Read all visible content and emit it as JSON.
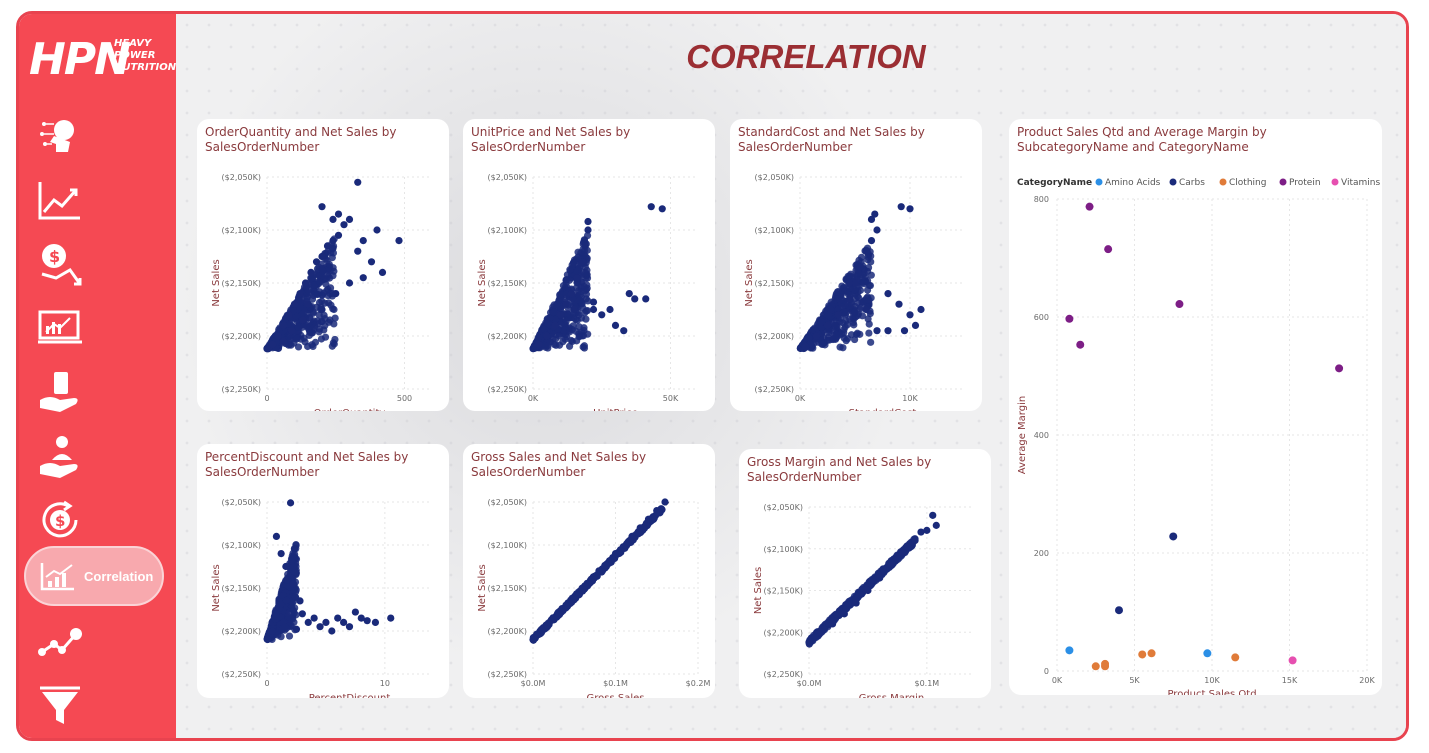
{
  "app": {
    "brand_main": "HPN",
    "brand_sub": [
      "HEAVY",
      "POWER",
      "NUTRITION"
    ],
    "page_title": "CORRELATION",
    "active_nav_label": "Correlation"
  },
  "nav_icons": [
    "ai-head-icon",
    "growth-chart-icon",
    "money-down-icon",
    "monitor-chart-icon",
    "hand-cash-icon",
    "hand-person-icon",
    "dollar-cycle-icon",
    "correlation-icon",
    "network-icon",
    "funnel-icon"
  ],
  "colors": {
    "sidebar": "#f54953",
    "accent": "#9b2e33",
    "point": "#1a2a7a",
    "amino": "#2b8fe6",
    "carbs": "#1a2a7a",
    "clothing": "#e07b39",
    "protein": "#7d1e86",
    "vitamins": "#e64fb0"
  },
  "chart_data": [
    {
      "type": "scatter",
      "title": "OrderQuantity and Net Sales by SalesOrderNumber",
      "xlabel": "OrderQuantity",
      "ylabel": "Net Sales",
      "xlim": [
        0,
        600
      ],
      "ylim": [
        -2250000,
        -2050000
      ],
      "x_ticks": [
        "0",
        "500"
      ],
      "x_tick_values": [
        0,
        500
      ],
      "y_ticks": [
        "($2,050K)",
        "($2,100K)",
        "($2,150K)",
        "($2,200K)",
        "($2,250K)"
      ],
      "y_tick_values": [
        -2050000,
        -2100000,
        -2150000,
        -2200000,
        -2250000
      ],
      "points": [
        [
          5,
          -2212000
        ],
        [
          20,
          -2208000
        ],
        [
          40,
          -2200000
        ],
        [
          60,
          -2190000
        ],
        [
          80,
          -2180000
        ],
        [
          100,
          -2170000
        ],
        [
          120,
          -2160000
        ],
        [
          140,
          -2150000
        ],
        [
          160,
          -2140000
        ],
        [
          180,
          -2130000
        ],
        [
          200,
          -2125000
        ],
        [
          220,
          -2115000
        ],
        [
          240,
          -2110000
        ],
        [
          260,
          -2105000
        ],
        [
          280,
          -2095000
        ],
        [
          300,
          -2090000
        ],
        [
          330,
          -2120000
        ],
        [
          350,
          -2110000
        ],
        [
          380,
          -2130000
        ],
        [
          400,
          -2100000
        ],
        [
          420,
          -2140000
        ],
        [
          480,
          -2110000
        ],
        [
          330,
          -2055000
        ],
        [
          200,
          -2078000
        ],
        [
          240,
          -2090000
        ],
        [
          260,
          -2085000
        ],
        [
          150,
          -2170000
        ],
        [
          90,
          -2195000
        ],
        [
          60,
          -2205000
        ],
        [
          300,
          -2150000
        ],
        [
          250,
          -2160000
        ],
        [
          200,
          -2175000
        ],
        [
          350,
          -2145000
        ],
        [
          130,
          -2185000
        ]
      ],
      "scatter_cloud": {
        "x": [
          0,
          250
        ],
        "y": [
          -2212000,
          -2105000
        ]
      }
    },
    {
      "type": "scatter",
      "title": "UnitPrice and Net Sales by SalesOrderNumber",
      "xlabel": "UnitPrice",
      "ylabel": "Net Sales",
      "xlim": [
        0,
        60000
      ],
      "ylim": [
        -2250000,
        -2050000
      ],
      "x_ticks": [
        "0K",
        "50K"
      ],
      "x_tick_values": [
        0,
        50000
      ],
      "y_ticks": [
        "($2,050K)",
        "($2,100K)",
        "($2,150K)",
        "($2,200K)",
        "($2,250K)"
      ],
      "y_tick_values": [
        -2050000,
        -2100000,
        -2150000,
        -2200000,
        -2250000
      ],
      "points": [
        [
          2000,
          -2208000
        ],
        [
          5000,
          -2200000
        ],
        [
          8000,
          -2190000
        ],
        [
          10000,
          -2180000
        ],
        [
          12000,
          -2170000
        ],
        [
          14000,
          -2160000
        ],
        [
          16000,
          -2145000
        ],
        [
          18000,
          -2130000
        ],
        [
          19000,
          -2115000
        ],
        [
          20000,
          -2100000
        ],
        [
          20000,
          -2092000
        ],
        [
          22000,
          -2175000
        ],
        [
          25000,
          -2180000
        ],
        [
          28000,
          -2175000
        ],
        [
          33000,
          -2195000
        ],
        [
          35000,
          -2160000
        ],
        [
          37000,
          -2165000
        ],
        [
          41000,
          -2165000
        ],
        [
          43000,
          -2078000
        ],
        [
          47000,
          -2080000
        ],
        [
          30000,
          -2190000
        ],
        [
          15000,
          -2175000
        ],
        [
          22000,
          -2168000
        ]
      ],
      "scatter_cloud": {
        "x": [
          0,
          20000
        ],
        "y": [
          -2212000,
          -2100000
        ]
      }
    },
    {
      "type": "scatter",
      "title": "StandardCost and Net Sales by SalesOrderNumber",
      "xlabel": "StandardCost",
      "ylabel": "Net Sales",
      "xlim": [
        0,
        15000
      ],
      "ylim": [
        -2250000,
        -2050000
      ],
      "x_ticks": [
        "0K",
        "10K"
      ],
      "x_tick_values": [
        0,
        10000
      ],
      "y_ticks": [
        "($2,050K)",
        "($2,100K)",
        "($2,150K)",
        "($2,200K)",
        "($2,250K)"
      ],
      "y_tick_values": [
        -2050000,
        -2100000,
        -2150000,
        -2200000,
        -2250000
      ],
      "points": [
        [
          500,
          -2210000
        ],
        [
          1500,
          -2200000
        ],
        [
          2500,
          -2190000
        ],
        [
          3500,
          -2180000
        ],
        [
          4500,
          -2165000
        ],
        [
          5000,
          -2150000
        ],
        [
          5500,
          -2135000
        ],
        [
          6000,
          -2120000
        ],
        [
          6500,
          -2110000
        ],
        [
          6500,
          -2090000
        ],
        [
          7000,
          -2100000
        ],
        [
          6800,
          -2085000
        ],
        [
          9200,
          -2078000
        ],
        [
          10000,
          -2080000
        ],
        [
          8000,
          -2160000
        ],
        [
          9000,
          -2170000
        ],
        [
          10000,
          -2180000
        ],
        [
          11000,
          -2175000
        ],
        [
          10500,
          -2190000
        ],
        [
          9500,
          -2195000
        ],
        [
          8000,
          -2195000
        ],
        [
          7000,
          -2195000
        ],
        [
          6000,
          -2175000
        ],
        [
          4500,
          -2150000
        ]
      ],
      "scatter_cloud": {
        "x": [
          0,
          6500
        ],
        "y": [
          -2212000,
          -2110000
        ]
      }
    },
    {
      "type": "scatter",
      "title": "Product Sales Qtd and Average Margin by SubcategoryName and CategoryName",
      "xlabel": "Product Sales Qtd",
      "ylabel": "Average Margin",
      "legend_title": "CategoryName",
      "legend_position": "top-left",
      "xlim": [
        0,
        20000
      ],
      "ylim": [
        0,
        800
      ],
      "x_ticks": [
        "0K",
        "5K",
        "10K",
        "15K",
        "20K"
      ],
      "x_tick_values": [
        0,
        5000,
        10000,
        15000,
        20000
      ],
      "y_ticks": [
        "0",
        "200",
        "400",
        "600",
        "800"
      ],
      "y_tick_values": [
        0,
        200,
        400,
        600,
        800
      ],
      "series": [
        {
          "name": "Amino Acids",
          "points": [
            [
              800,
              35
            ],
            [
              9700,
              30
            ]
          ]
        },
        {
          "name": "Carbs",
          "points": [
            [
              7500,
              228
            ],
            [
              4000,
              103
            ]
          ]
        },
        {
          "name": "Clothing",
          "points": [
            [
              2500,
              8
            ],
            [
              3100,
              8
            ],
            [
              3100,
              12
            ],
            [
              5500,
              28
            ],
            [
              6100,
              30
            ],
            [
              11500,
              23
            ]
          ]
        },
        {
          "name": "Protein",
          "points": [
            [
              2100,
              787
            ],
            [
              3300,
              715
            ],
            [
              7900,
              622
            ],
            [
              800,
              597
            ],
            [
              1500,
              553
            ],
            [
              18200,
              513
            ]
          ]
        },
        {
          "name": "Vitamins",
          "points": [
            [
              15200,
              18
            ]
          ]
        }
      ]
    },
    {
      "type": "scatter",
      "title": "PercentDiscount and Net Sales by SalesOrderNumber",
      "xlabel": "PercentDiscount",
      "ylabel": "Net Sales",
      "xlim": [
        0,
        14
      ],
      "ylim": [
        -2250000,
        -2050000
      ],
      "x_ticks": [
        "0",
        "10"
      ],
      "x_tick_values": [
        0,
        10
      ],
      "y_ticks": [
        "($2,050K)",
        "($2,100K)",
        "($2,150K)",
        "($2,200K)",
        "($2,250K)"
      ],
      "y_tick_values": [
        -2050000,
        -2100000,
        -2150000,
        -2200000,
        -2250000
      ],
      "points": [
        [
          2,
          -2051000
        ],
        [
          0.8,
          -2090000
        ],
        [
          1.2,
          -2110000
        ],
        [
          1.6,
          -2125000
        ],
        [
          2.2,
          -2145000
        ],
        [
          2.8,
          -2165000
        ],
        [
          3,
          -2180000
        ],
        [
          3.5,
          -2190000
        ],
        [
          4,
          -2185000
        ],
        [
          4.5,
          -2195000
        ],
        [
          5,
          -2190000
        ],
        [
          6,
          -2185000
        ],
        [
          6.5,
          -2190000
        ],
        [
          7,
          -2195000
        ],
        [
          8,
          -2185000
        ],
        [
          8.5,
          -2188000
        ],
        [
          9.2,
          -2190000
        ],
        [
          10.5,
          -2185000
        ],
        [
          7.5,
          -2178000
        ],
        [
          2.5,
          -2198000
        ],
        [
          5.5,
          -2200000
        ]
      ],
      "scatter_cloud": {
        "x": [
          0,
          2.5
        ],
        "y": [
          -2210000,
          -2095000
        ]
      }
    },
    {
      "type": "scatter",
      "title": "Gross Sales and Net Sales by SalesOrderNumber",
      "xlabel": "Gross Sales",
      "ylabel": "Net Sales",
      "xlim": [
        0,
        200000
      ],
      "ylim": [
        -2250000,
        -2050000
      ],
      "x_ticks": [
        "$0.0M",
        "$0.1M",
        "$0.2M"
      ],
      "x_tick_values": [
        0,
        100000,
        200000
      ],
      "y_ticks": [
        "($2,050K)",
        "($2,100K)",
        "($2,150K)",
        "($2,200K)",
        "($2,250K)"
      ],
      "y_tick_values": [
        -2050000,
        -2100000,
        -2150000,
        -2200000,
        -2250000
      ],
      "points": [
        [
          0,
          -2210000
        ],
        [
          20000,
          -2190000
        ],
        [
          40000,
          -2170000
        ],
        [
          60000,
          -2150000
        ],
        [
          80000,
          -2130000
        ],
        [
          100000,
          -2110000
        ],
        [
          120000,
          -2090000
        ],
        [
          130000,
          -2080000
        ],
        [
          140000,
          -2070000
        ],
        [
          150000,
          -2060000
        ],
        [
          160000,
          -2050000
        ]
      ],
      "trend": [
        [
          0,
          -2210000
        ],
        [
          165000,
          -2050000
        ]
      ]
    },
    {
      "type": "scatter",
      "title": "Gross Margin and Net Sales by SalesOrderNumber",
      "xlabel": "Gross Margin",
      "ylabel": "Net Sales",
      "xlim": [
        0,
        140000
      ],
      "ylim": [
        -2250000,
        -2050000
      ],
      "x_ticks": [
        "$0.0M",
        "$0.1M"
      ],
      "x_tick_values": [
        0,
        100000
      ],
      "y_ticks": [
        "($2,050K)",
        "($2,100K)",
        "($2,150K)",
        "($2,200K)",
        "($2,250K)"
      ],
      "y_tick_values": [
        -2050000,
        -2100000,
        -2150000,
        -2200000,
        -2250000
      ],
      "points": [
        [
          0,
          -2212000
        ],
        [
          10000,
          -2200000
        ],
        [
          20000,
          -2190000
        ],
        [
          30000,
          -2178000
        ],
        [
          40000,
          -2165000
        ],
        [
          50000,
          -2150000
        ],
        [
          60000,
          -2135000
        ],
        [
          70000,
          -2120000
        ],
        [
          80000,
          -2105000
        ],
        [
          90000,
          -2090000
        ],
        [
          95000,
          -2080000
        ],
        [
          105000,
          -2060000
        ],
        [
          108000,
          -2072000
        ],
        [
          100000,
          -2078000
        ]
      ],
      "scatter_cloud": {
        "x": [
          0,
          90000
        ],
        "y": [
          -2212000,
          -2090000
        ],
        "linear": true
      }
    }
  ]
}
